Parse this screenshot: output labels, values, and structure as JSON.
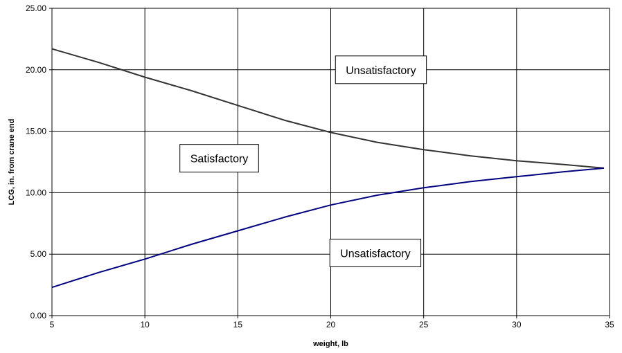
{
  "chart_data": {
    "type": "line",
    "xlabel": "weight, lb",
    "ylabel": "LCG, in. from crane end",
    "xlim": [
      5,
      35
    ],
    "ylim": [
      0,
      25
    ],
    "x_ticks": [
      "5",
      "10",
      "15",
      "20",
      "25",
      "30",
      "35"
    ],
    "y_ticks": [
      "0.00",
      "5.00",
      "10.00",
      "15.00",
      "20.00",
      "25.00"
    ],
    "grid": true,
    "legend": "none",
    "series": [
      {
        "color": "#333333",
        "x": [
          5,
          7.5,
          10,
          12.5,
          15,
          17.5,
          20,
          22.5,
          25,
          27.5,
          30,
          32.5,
          34.7
        ],
        "values": [
          21.7,
          20.6,
          19.4,
          18.3,
          17.1,
          15.9,
          14.9,
          14.1,
          13.5,
          13.0,
          12.6,
          12.3,
          12.0
        ]
      },
      {
        "color": "#000080",
        "x": [
          5,
          7.5,
          10,
          12.5,
          15,
          17.5,
          20,
          22.5,
          25,
          27.5,
          30,
          32.5,
          34.7
        ],
        "values": [
          2.3,
          3.5,
          4.6,
          5.8,
          6.9,
          8.0,
          9.0,
          9.8,
          10.4,
          10.9,
          11.3,
          11.7,
          12.0
        ]
      }
    ],
    "annotations": [
      {
        "text": "Unsatisfactory",
        "x": 22.7,
        "y": 20.0
      },
      {
        "text": "Satisfactory",
        "x": 14.0,
        "y": 12.8
      },
      {
        "text": "Unsatisfactory",
        "x": 22.4,
        "y": 5.1
      }
    ]
  }
}
